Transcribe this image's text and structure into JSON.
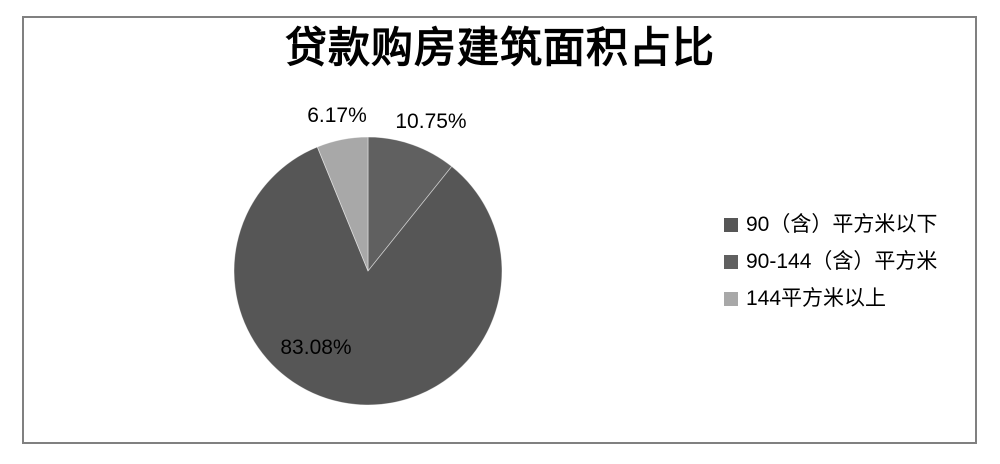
{
  "title": "贷款购房建筑面积占比",
  "chart_data": {
    "type": "pie",
    "title": "贷款购房建筑面积占比",
    "legend_position": "right",
    "categories": [
      "90（含）平方米以下",
      "90-144（含）平方米",
      "144平方米以上"
    ],
    "values": [
      83.08,
      10.75,
      6.17
    ],
    "slices": [
      {
        "category": "90-144（含）平方米",
        "value": 10.75,
        "label": "10.75%",
        "color": "#606060"
      },
      {
        "category": "90（含）平方米以下",
        "value": 83.08,
        "label": "83.08%",
        "color": "#565656"
      },
      {
        "category": "144平方米以上",
        "value": 6.17,
        "label": "6.17%",
        "color": "#a8a8a8"
      }
    ],
    "legend": [
      {
        "label": "90（含）平方米以下",
        "color": "#565656"
      },
      {
        "label": "90-144（含）平方米",
        "color": "#606060"
      },
      {
        "label": "144平方米以上",
        "color": "#a8a8a8"
      }
    ],
    "frame_border_color": "#808080"
  }
}
